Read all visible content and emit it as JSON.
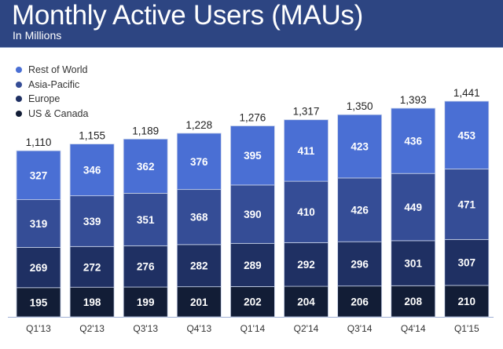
{
  "header": {
    "title": "Monthly Active Users (MAUs)",
    "subtitle": "In Millions"
  },
  "colors": {
    "header_bg": "#2d4582"
  },
  "chart_data": {
    "type": "bar",
    "stacked": true,
    "title": "Monthly Active Users (MAUs)",
    "subtitle": "In Millions",
    "xlabel": "",
    "ylabel": "",
    "ylim": [
      0,
      1441
    ],
    "grid": false,
    "legend_position": "top-left",
    "categories": [
      "Q1'13",
      "Q2'13",
      "Q3'13",
      "Q4'13",
      "Q1'14",
      "Q2'14",
      "Q3'14",
      "Q4'14",
      "Q1'15"
    ],
    "series": [
      {
        "name": "US & Canada",
        "color": "#121d36",
        "values": [
          195,
          198,
          199,
          201,
          202,
          204,
          206,
          208,
          210
        ]
      },
      {
        "name": "Europe",
        "color": "#1f3063",
        "values": [
          269,
          272,
          276,
          282,
          289,
          292,
          296,
          301,
          307
        ]
      },
      {
        "name": "Asia-Pacific",
        "color": "#354d96",
        "values": [
          319,
          339,
          351,
          368,
          390,
          410,
          426,
          449,
          471
        ]
      },
      {
        "name": "Rest of World",
        "color": "#4a6fd4",
        "values": [
          327,
          346,
          362,
          376,
          395,
          411,
          423,
          436,
          453
        ]
      }
    ],
    "totals": [
      "1,110",
      "1,155",
      "1,189",
      "1,228",
      "1,276",
      "1,317",
      "1,350",
      "1,393",
      "1,441"
    ]
  }
}
